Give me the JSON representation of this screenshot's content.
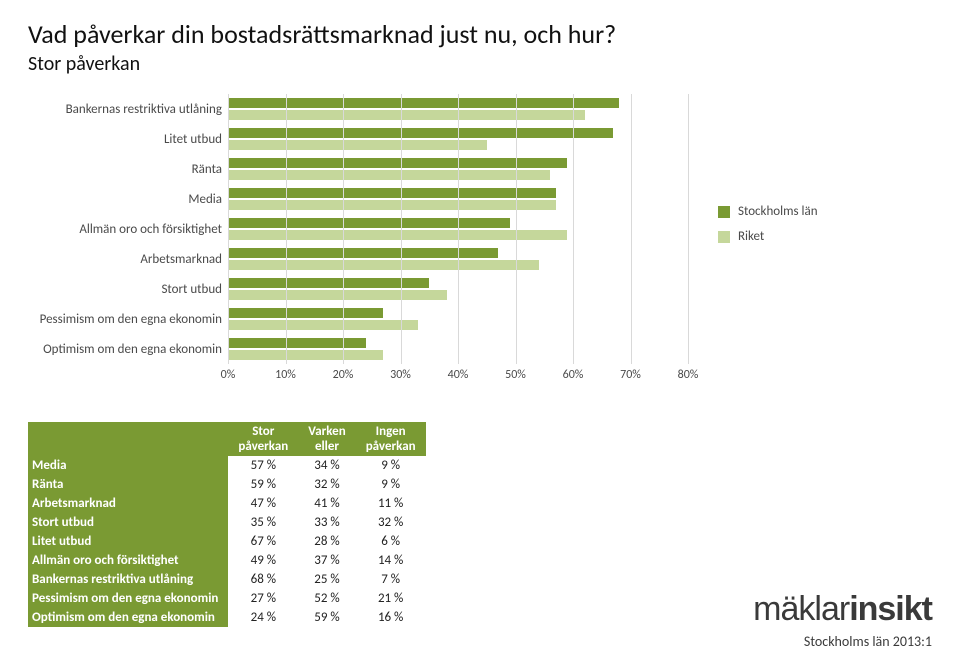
{
  "title": "Vad påverkar din bostadsrättsmarknad just nu, och hur?",
  "subtitle": "Stor påverkan",
  "chart": {
    "categories": [
      "Bankernas restriktiva utlåning",
      "Litet utbud",
      "Ränta",
      "Media",
      "Allmän oro och försiktighet",
      "Arbetsmarknad",
      "Stort utbud",
      "Pessimism om den egna ekonomin",
      "Optimism om den egna ekonomin"
    ],
    "series": [
      {
        "name": "Stockholms län",
        "color": "#7a9a33",
        "values": [
          68,
          67,
          59,
          57,
          49,
          47,
          35,
          27,
          24
        ]
      },
      {
        "name": "Riket",
        "color": "#c5d79b",
        "values": [
          62,
          45,
          56,
          57,
          59,
          54,
          38,
          33,
          27
        ]
      }
    ],
    "x_ticks": [
      0,
      10,
      20,
      30,
      40,
      50,
      60,
      70,
      80
    ],
    "x_max": 80,
    "grid_color": "#d9d9d9",
    "label_color": "#4a4a4a",
    "label_fontsize": 13
  },
  "table": {
    "header_bg": "#7a9a33",
    "rowhead_bg": "#7a9a33",
    "columns": [
      "Stor påverkan",
      "Varken eller",
      "Ingen påverkan"
    ],
    "rows": [
      {
        "label": "Media",
        "cells": [
          "57 %",
          "34 %",
          "9 %"
        ]
      },
      {
        "label": "Ränta",
        "cells": [
          "59 %",
          "32 %",
          "9 %"
        ]
      },
      {
        "label": "Arbetsmarknad",
        "cells": [
          "47 %",
          "41 %",
          "11 %"
        ]
      },
      {
        "label": "Stort utbud",
        "cells": [
          "35 %",
          "33 %",
          "32 %"
        ]
      },
      {
        "label": "Litet utbud",
        "cells": [
          "67 %",
          "28 %",
          "6 %"
        ]
      },
      {
        "label": "Allmän oro och försiktighet",
        "cells": [
          "49 %",
          "37 %",
          "14 %"
        ]
      },
      {
        "label": "Bankernas restriktiva utlåning",
        "cells": [
          "68 %",
          "25 %",
          "7 %"
        ]
      },
      {
        "label": "Pessimism om den egna ekonomin",
        "cells": [
          "27 %",
          "52 %",
          "21 %"
        ]
      },
      {
        "label": "Optimism om den egna ekonomin",
        "cells": [
          "24 %",
          "59 %",
          "16 %"
        ]
      }
    ]
  },
  "logo": {
    "part1": "mäklar",
    "part2": "insikt",
    "color": "#3a3a3a"
  },
  "footer": "Stockholms län 2013:1"
}
